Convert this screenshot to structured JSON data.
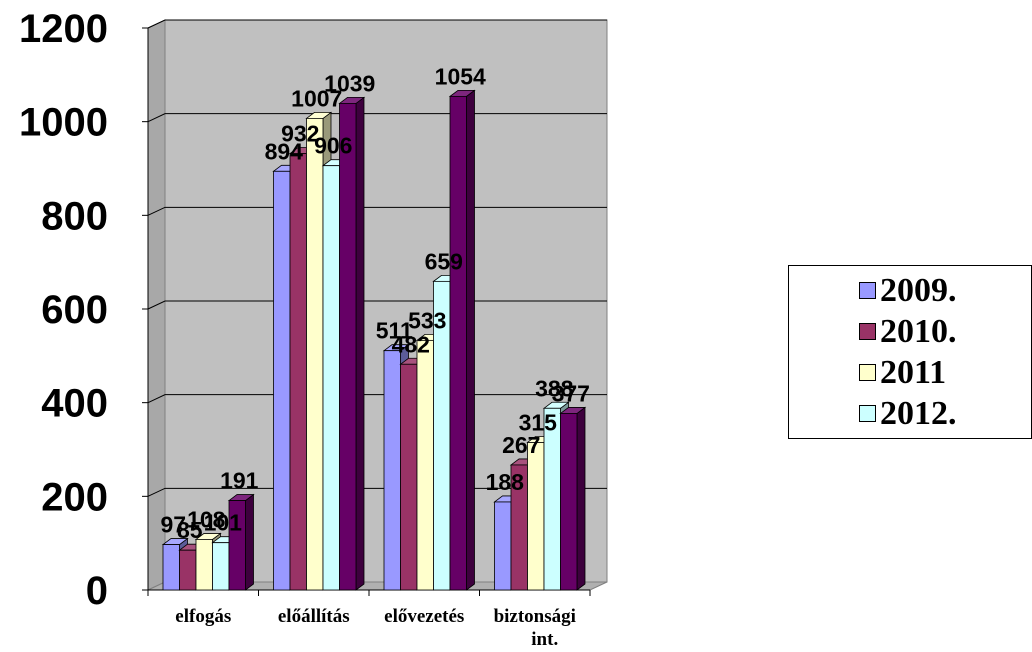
{
  "chart_data": {
    "type": "bar",
    "title": "",
    "xlabel": "",
    "ylabel": "",
    "categories": [
      "elfogás",
      "előállítás",
      "elővezetés",
      "biztonsági int."
    ],
    "category_lines": [
      [
        "elfogás"
      ],
      [
        "előállítás"
      ],
      [
        "elővezetés"
      ],
      [
        "biztonsági",
        "int."
      ]
    ],
    "y_ticks": [
      "0",
      "200",
      "400",
      "600",
      "800",
      "1000",
      "1200"
    ],
    "ylim": [
      0,
      1200
    ],
    "grid": true,
    "legend_position": "right",
    "series": [
      {
        "name": "2009.",
        "values": [
          97,
          894,
          511,
          188
        ],
        "labels": [
          "97",
          "894",
          "511",
          "188"
        ],
        "color": "#9999FF"
      },
      {
        "name": "2010.",
        "values": [
          85,
          932,
          482,
          267
        ],
        "labels": [
          "85",
          "932",
          "482",
          "267"
        ],
        "color": "#993366"
      },
      {
        "name": "2011",
        "values": [
          108,
          1007,
          533,
          315
        ],
        "labels": [
          "108",
          "1007",
          "533",
          "315"
        ],
        "color": "#FFFFCC"
      },
      {
        "name": "2012.",
        "values": [
          101,
          906,
          659,
          388
        ],
        "labels": [
          "101",
          "906",
          "659",
          "388"
        ],
        "color": "#CCFFFF"
      },
      {
        "name": "",
        "values": [
          191,
          1039,
          1054,
          377
        ],
        "labels": [
          "191",
          "1039",
          "1054",
          "377"
        ],
        "color": "#660066"
      }
    ],
    "legend_entries": [
      {
        "label": "2009.",
        "color": "#9999FF"
      },
      {
        "label": "2010.",
        "color": "#993366"
      },
      {
        "label": "2011",
        "color": "#FFFFCC"
      },
      {
        "label": "2012.",
        "color": "#CCFFFF"
      }
    ],
    "plot_background": "#C0C0C0"
  }
}
